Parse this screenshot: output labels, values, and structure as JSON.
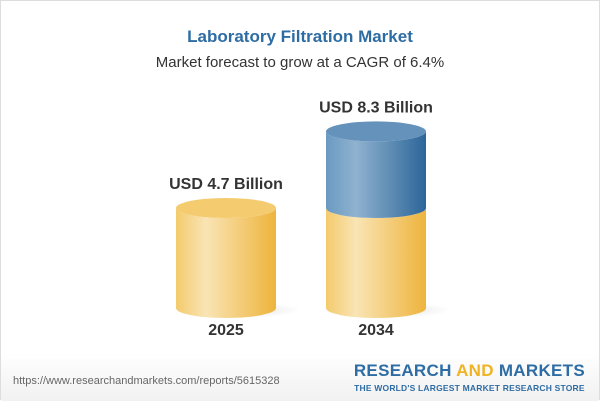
{
  "title": "Laboratory Filtration Market",
  "subtitle": "Market forecast to grow at a CAGR of 6.4%",
  "chart_data": {
    "type": "bar",
    "style": "3d-cylinder",
    "categories": [
      "2025",
      "2034"
    ],
    "values": [
      4.7,
      8.3
    ],
    "data_labels": [
      "USD 4.7 Billion",
      "USD 8.3 Billion"
    ],
    "unit": "USD Billion",
    "colors": {
      "base": "#f2c65a",
      "growth": "#3f7cb0"
    }
  },
  "footer": {
    "url": "https://www.researchandmarkets.com/reports/5615328",
    "logo_word1": "RESEARCH",
    "logo_word2": "AND",
    "logo_word3": "MARKETS",
    "logo_tagline": "THE WORLD'S LARGEST MARKET RESEARCH STORE"
  }
}
